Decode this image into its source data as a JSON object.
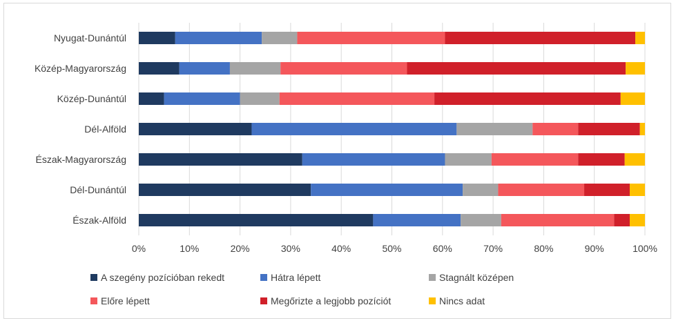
{
  "chart_data": {
    "type": "bar",
    "orientation": "horizontal",
    "stacked": "percent",
    "title": "",
    "xlabel": "",
    "ylabel": "",
    "xlim": [
      0,
      100
    ],
    "x_ticks": [
      "0%",
      "10%",
      "20%",
      "30%",
      "40%",
      "50%",
      "60%",
      "70%",
      "80%",
      "90%",
      "100%"
    ],
    "grid": true,
    "legend_position": "bottom",
    "categories": [
      "Nyugat-Dunántúl",
      "Közép-Magyarország",
      "Közép-Dunántúl",
      "Dél-Alföld",
      "Észak-Magyarország",
      "Dél-Dunántúl",
      "Észak-Alföld"
    ],
    "series": [
      {
        "name": "A szegény pozícióban rekedt",
        "color": "#1f3a60",
        "values": [
          7.2,
          8.0,
          5.0,
          22.3,
          32.3,
          34.0,
          46.3
        ]
      },
      {
        "name": "Hátra lépett",
        "color": "#4472c4",
        "values": [
          17.1,
          10.0,
          15.0,
          40.5,
          28.2,
          30.0,
          17.3
        ]
      },
      {
        "name": "Stagnált középen",
        "color": "#a5a5a5",
        "values": [
          7.0,
          10.0,
          7.8,
          15.0,
          9.2,
          7.0,
          8.0
        ]
      },
      {
        "name": "Előre lépett",
        "color": "#f4575b",
        "values": [
          29.2,
          25.0,
          30.6,
          9.0,
          17.1,
          17.0,
          22.3
        ]
      },
      {
        "name": "Megőrizte a legjobb pozíciót",
        "color": "#d0202a",
        "values": [
          37.6,
          43.2,
          36.8,
          12.2,
          9.2,
          9.0,
          3.1
        ]
      },
      {
        "name": "Nincs adat",
        "color": "#ffc000",
        "values": [
          1.9,
          3.8,
          4.8,
          1.0,
          4.0,
          3.0,
          3.0
        ]
      }
    ]
  }
}
